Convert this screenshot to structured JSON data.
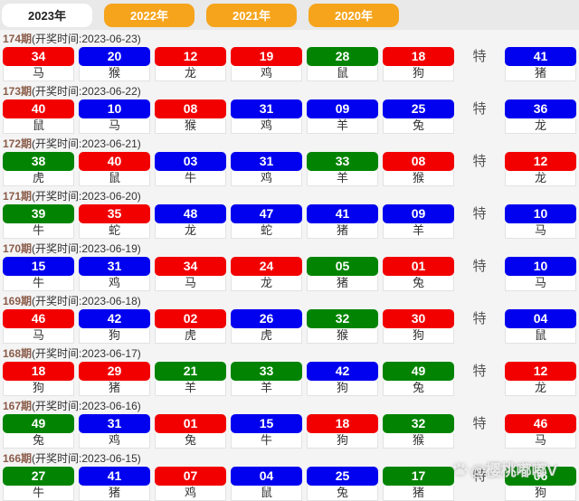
{
  "tabs": [
    {
      "label": "2023年",
      "active": true
    },
    {
      "label": "2022年",
      "active": false
    },
    {
      "label": "2021年",
      "active": false
    },
    {
      "label": "2020年",
      "active": false
    }
  ],
  "te_label": "特",
  "colors": {
    "ball_red": "#f20000",
    "ball_blue": "#0101ef",
    "ball_green": "#028402",
    "tab_orange": "#f5a41c",
    "tab_active_bg": "#ffffff"
  },
  "watermark": {
    "icon": "paw-icon",
    "text": "@樱桃嘟嘟V"
  },
  "rows": [
    {
      "period": "174期",
      "draw_time": "(开奖时间:2023-06-23)",
      "balls": [
        {
          "num": "34",
          "color": "red",
          "zodiac": "马"
        },
        {
          "num": "20",
          "color": "blue",
          "zodiac": "猴"
        },
        {
          "num": "12",
          "color": "red",
          "zodiac": "龙"
        },
        {
          "num": "19",
          "color": "red",
          "zodiac": "鸡"
        },
        {
          "num": "28",
          "color": "green",
          "zodiac": "鼠"
        },
        {
          "num": "18",
          "color": "red",
          "zodiac": "狗"
        }
      ],
      "special": {
        "num": "41",
        "color": "blue",
        "zodiac": "猪"
      }
    },
    {
      "period": "173期",
      "draw_time": "(开奖时间:2023-06-22)",
      "balls": [
        {
          "num": "40",
          "color": "red",
          "zodiac": "鼠"
        },
        {
          "num": "10",
          "color": "blue",
          "zodiac": "马"
        },
        {
          "num": "08",
          "color": "red",
          "zodiac": "猴"
        },
        {
          "num": "31",
          "color": "blue",
          "zodiac": "鸡"
        },
        {
          "num": "09",
          "color": "blue",
          "zodiac": "羊"
        },
        {
          "num": "25",
          "color": "blue",
          "zodiac": "兔"
        }
      ],
      "special": {
        "num": "36",
        "color": "blue",
        "zodiac": "龙"
      }
    },
    {
      "period": "172期",
      "draw_time": "(开奖时间:2023-06-21)",
      "balls": [
        {
          "num": "38",
          "color": "green",
          "zodiac": "虎"
        },
        {
          "num": "40",
          "color": "red",
          "zodiac": "鼠"
        },
        {
          "num": "03",
          "color": "blue",
          "zodiac": "牛"
        },
        {
          "num": "31",
          "color": "blue",
          "zodiac": "鸡"
        },
        {
          "num": "33",
          "color": "green",
          "zodiac": "羊"
        },
        {
          "num": "08",
          "color": "red",
          "zodiac": "猴"
        }
      ],
      "special": {
        "num": "12",
        "color": "red",
        "zodiac": "龙"
      }
    },
    {
      "period": "171期",
      "draw_time": "(开奖时间:2023-06-20)",
      "balls": [
        {
          "num": "39",
          "color": "green",
          "zodiac": "牛"
        },
        {
          "num": "35",
          "color": "red",
          "zodiac": "蛇"
        },
        {
          "num": "48",
          "color": "blue",
          "zodiac": "龙"
        },
        {
          "num": "47",
          "color": "blue",
          "zodiac": "蛇"
        },
        {
          "num": "41",
          "color": "blue",
          "zodiac": "猪"
        },
        {
          "num": "09",
          "color": "blue",
          "zodiac": "羊"
        }
      ],
      "special": {
        "num": "10",
        "color": "blue",
        "zodiac": "马"
      }
    },
    {
      "period": "170期",
      "draw_time": "(开奖时间:2023-06-19)",
      "balls": [
        {
          "num": "15",
          "color": "blue",
          "zodiac": "牛"
        },
        {
          "num": "31",
          "color": "blue",
          "zodiac": "鸡"
        },
        {
          "num": "34",
          "color": "red",
          "zodiac": "马"
        },
        {
          "num": "24",
          "color": "red",
          "zodiac": "龙"
        },
        {
          "num": "05",
          "color": "green",
          "zodiac": "猪"
        },
        {
          "num": "01",
          "color": "red",
          "zodiac": "兔"
        }
      ],
      "special": {
        "num": "10",
        "color": "blue",
        "zodiac": "马"
      }
    },
    {
      "period": "169期",
      "draw_time": "(开奖时间:2023-06-18)",
      "balls": [
        {
          "num": "46",
          "color": "red",
          "zodiac": "马"
        },
        {
          "num": "42",
          "color": "blue",
          "zodiac": "狗"
        },
        {
          "num": "02",
          "color": "red",
          "zodiac": "虎"
        },
        {
          "num": "26",
          "color": "blue",
          "zodiac": "虎"
        },
        {
          "num": "32",
          "color": "green",
          "zodiac": "猴"
        },
        {
          "num": "30",
          "color": "red",
          "zodiac": "狗"
        }
      ],
      "special": {
        "num": "04",
        "color": "blue",
        "zodiac": "鼠"
      }
    },
    {
      "period": "168期",
      "draw_time": "(开奖时间:2023-06-17)",
      "balls": [
        {
          "num": "18",
          "color": "red",
          "zodiac": "狗"
        },
        {
          "num": "29",
          "color": "red",
          "zodiac": "猪"
        },
        {
          "num": "21",
          "color": "green",
          "zodiac": "羊"
        },
        {
          "num": "33",
          "color": "green",
          "zodiac": "羊"
        },
        {
          "num": "42",
          "color": "blue",
          "zodiac": "狗"
        },
        {
          "num": "49",
          "color": "green",
          "zodiac": "兔"
        }
      ],
      "special": {
        "num": "12",
        "color": "red",
        "zodiac": "龙"
      }
    },
    {
      "period": "167期",
      "draw_time": "(开奖时间:2023-06-16)",
      "balls": [
        {
          "num": "49",
          "color": "green",
          "zodiac": "兔"
        },
        {
          "num": "31",
          "color": "blue",
          "zodiac": "鸡"
        },
        {
          "num": "01",
          "color": "red",
          "zodiac": "兔"
        },
        {
          "num": "15",
          "color": "blue",
          "zodiac": "牛"
        },
        {
          "num": "18",
          "color": "red",
          "zodiac": "狗"
        },
        {
          "num": "32",
          "color": "green",
          "zodiac": "猴"
        }
      ],
      "special": {
        "num": "46",
        "color": "red",
        "zodiac": "马"
      }
    },
    {
      "period": "166期",
      "draw_time": "(开奖时间:2023-06-15)",
      "balls": [
        {
          "num": "27",
          "color": "green",
          "zodiac": "牛"
        },
        {
          "num": "41",
          "color": "blue",
          "zodiac": "猪"
        },
        {
          "num": "07",
          "color": "red",
          "zodiac": "鸡"
        },
        {
          "num": "04",
          "color": "blue",
          "zodiac": "鼠"
        },
        {
          "num": "25",
          "color": "blue",
          "zodiac": "兔"
        },
        {
          "num": "17",
          "color": "green",
          "zodiac": "猪"
        }
      ],
      "special": {
        "num": "06",
        "color": "green",
        "zodiac": "狗"
      }
    }
  ]
}
